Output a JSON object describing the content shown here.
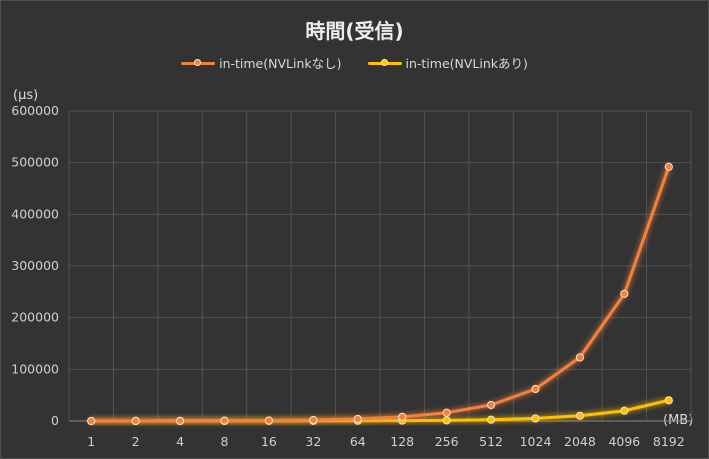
{
  "chart_data": {
    "type": "line",
    "title": "時間(受信)",
    "ylabel": "(µs)",
    "xlabel": "(MB)",
    "categories": [
      "1",
      "2",
      "4",
      "8",
      "16",
      "32",
      "64",
      "128",
      "256",
      "512",
      "1024",
      "2048",
      "4096",
      "8192"
    ],
    "ylim": [
      0,
      600000
    ],
    "yticks": [
      "0",
      "100000",
      "200000",
      "300000",
      "400000",
      "500000",
      "600000"
    ],
    "grid": true,
    "legend_position": "top",
    "series": [
      {
        "name": "in-time(NVLinkなし)",
        "color": "#f4813a",
        "values": [
          0,
          200,
          400,
          700,
          1000,
          2000,
          4000,
          8000,
          16000,
          31000,
          62000,
          123000,
          246000,
          492000
        ]
      },
      {
        "name": "in-time(NVLinkあり)",
        "color": "#ffc000",
        "values": [
          0,
          0,
          100,
          100,
          200,
          300,
          500,
          800,
          1200,
          2500,
          5000,
          10000,
          20000,
          40000
        ]
      }
    ]
  }
}
